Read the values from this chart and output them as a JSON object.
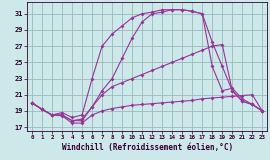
{
  "xlabel": "Windchill (Refroidissement éolien,°C)",
  "background_color": "#cce8e8",
  "grid_color": "#99bbbb",
  "line_color": "#993399",
  "xlim": [
    -0.5,
    23.5
  ],
  "ylim": [
    16.5,
    32.5
  ],
  "yticks": [
    17,
    19,
    21,
    23,
    25,
    27,
    29,
    31
  ],
  "xticks": [
    0,
    1,
    2,
    3,
    4,
    5,
    6,
    7,
    8,
    9,
    10,
    11,
    12,
    13,
    14,
    15,
    16,
    17,
    18,
    19,
    20,
    21,
    22,
    23
  ],
  "series": [
    [
      20.0,
      19.2,
      18.5,
      18.4,
      17.5,
      17.5,
      18.5,
      19.0,
      19.3,
      19.5,
      19.7,
      19.8,
      19.9,
      20.0,
      20.1,
      20.2,
      20.3,
      20.5,
      20.6,
      20.7,
      20.8,
      20.9,
      21.0,
      19.0
    ],
    [
      20.0,
      19.2,
      18.5,
      18.5,
      17.8,
      18.0,
      19.5,
      21.0,
      22.0,
      22.5,
      23.0,
      23.5,
      24.0,
      24.5,
      25.0,
      25.5,
      26.0,
      26.5,
      27.0,
      27.2,
      21.5,
      20.2,
      19.8,
      19.0
    ],
    [
      20.0,
      19.2,
      18.5,
      18.8,
      18.2,
      18.5,
      23.0,
      27.0,
      28.5,
      29.5,
      30.5,
      31.0,
      31.2,
      31.5,
      31.5,
      31.5,
      31.3,
      31.0,
      27.5,
      24.5,
      21.5,
      20.2,
      19.8,
      19.0
    ],
    [
      20.0,
      19.2,
      18.5,
      18.5,
      17.8,
      17.8,
      19.5,
      21.5,
      23.0,
      25.5,
      28.0,
      30.0,
      31.0,
      31.2,
      31.5,
      31.5,
      31.3,
      31.0,
      24.5,
      21.5,
      21.8,
      20.5,
      19.8,
      19.0
    ]
  ]
}
